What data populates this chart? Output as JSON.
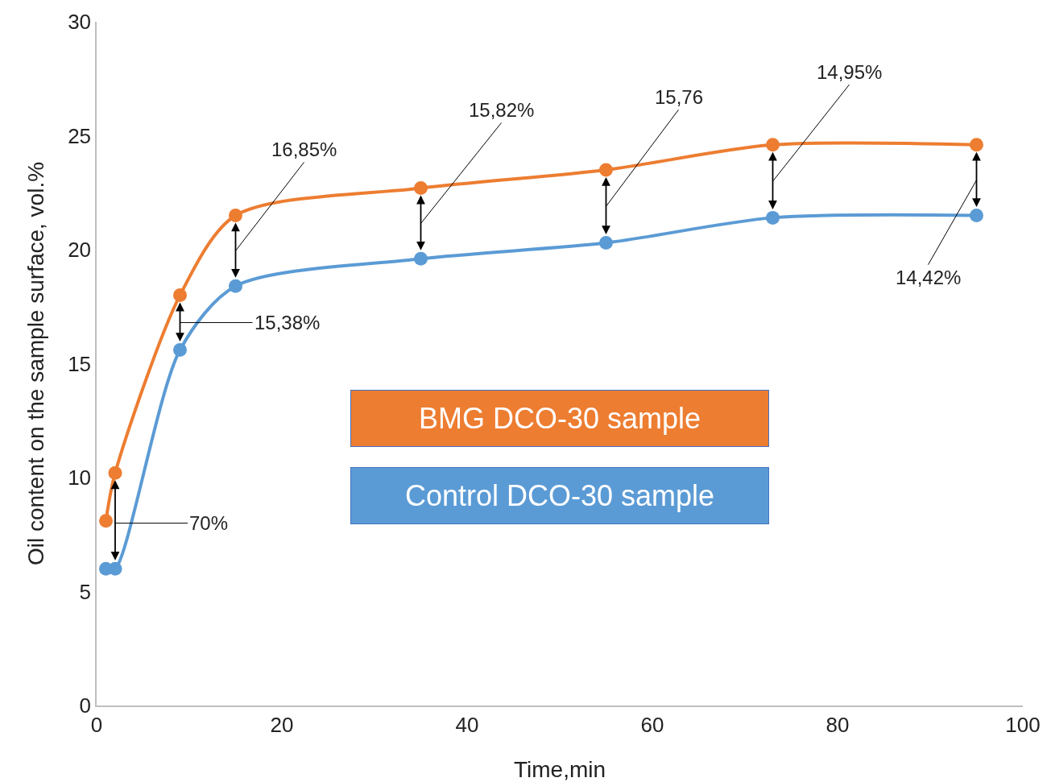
{
  "chart_data": {
    "type": "line",
    "xlabel": "Time,min",
    "ylabel": "Oil content on the sample surface, vol.%",
    "xlim": [
      0,
      100
    ],
    "ylim": [
      0,
      30
    ],
    "xticks": [
      0,
      20,
      40,
      60,
      80,
      100
    ],
    "yticks": [
      0,
      5,
      10,
      15,
      20,
      25,
      30
    ],
    "grid": false,
    "legend": "center",
    "marker": "circle",
    "line_style": "solid",
    "series": [
      {
        "name": "BMG DCO-30 sample",
        "color": "#ed7d31",
        "x": [
          1,
          2,
          9,
          15,
          35,
          55,
          73,
          95
        ],
        "values": [
          8.1,
          10.2,
          18.0,
          21.5,
          22.7,
          23.5,
          24.6,
          24.6
        ]
      },
      {
        "name": "Control DCO-30 sample",
        "color": "#5b9bd5",
        "x": [
          1,
          2,
          9,
          15,
          35,
          55,
          73,
          95
        ],
        "values": [
          6.0,
          6.0,
          15.6,
          18.4,
          19.6,
          20.3,
          21.4,
          21.5
        ]
      }
    ],
    "annotations": [
      {
        "text": "70%",
        "x": 2,
        "y": 8
      },
      "15,38%",
      "16,85%",
      "15,82%",
      "15,76",
      "14,95%",
      "14,42%"
    ]
  }
}
